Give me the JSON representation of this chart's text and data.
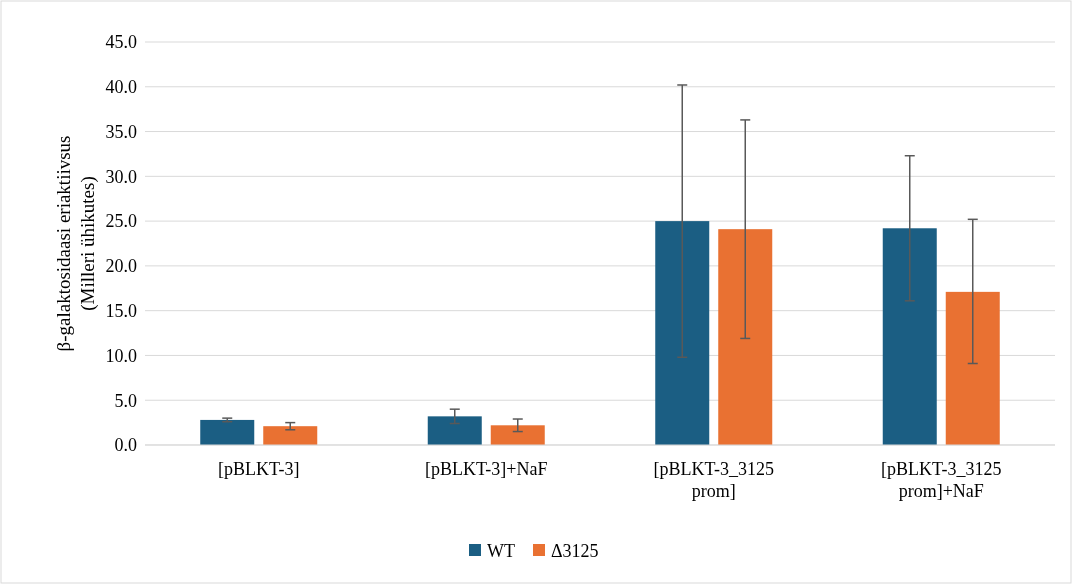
{
  "chart_data": {
    "type": "bar",
    "ylabel": "β-galaktosidaasi eriaktiivsus\n(Milleri ühikutes)",
    "categories": [
      "[pBLKT-3]",
      "[pBLKT-3]+NaF",
      "[pBLKT-3_3125 prom]",
      "[pBLKT-3_3125 prom]+NaF"
    ],
    "series": [
      {
        "name": "WT",
        "color": "#1b5e83",
        "values": [
          2.8,
          3.2,
          25.0,
          24.2
        ],
        "errors": [
          [
            2.6,
            3.0
          ],
          [
            2.4,
            4.0
          ],
          [
            9.8,
            40.2
          ],
          [
            16.1,
            32.3
          ]
        ]
      },
      {
        "name": "Δ3125",
        "color": "#e97132",
        "values": [
          2.1,
          2.2,
          24.1,
          17.1
        ],
        "errors": [
          [
            1.7,
            2.5
          ],
          [
            1.5,
            2.9
          ],
          [
            11.9,
            36.3
          ],
          [
            9.1,
            25.2
          ]
        ]
      }
    ],
    "ylim": [
      0,
      45
    ],
    "yticks": [
      {
        "value": 0,
        "label": "0.0"
      },
      {
        "value": 5,
        "label": "5.0"
      },
      {
        "value": 10,
        "label": "10.0"
      },
      {
        "value": 15,
        "label": "15.0"
      },
      {
        "value": 20,
        "label": "20.0"
      },
      {
        "value": 25,
        "label": "25.0"
      },
      {
        "value": 30,
        "label": "30.0"
      },
      {
        "value": 35,
        "label": "35.0"
      },
      {
        "value": 40,
        "label": "40.0"
      },
      {
        "value": 45,
        "label": "45.0"
      }
    ],
    "grid": "y",
    "legend": "bottom"
  }
}
